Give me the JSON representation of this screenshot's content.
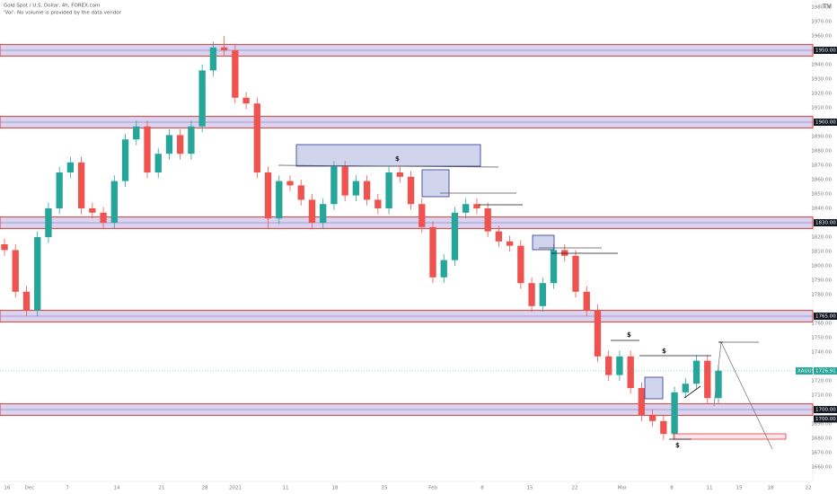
{
  "header": {
    "title": "Gold Spot / U.S. Dollar, 4h, FOREX.com",
    "note": "'Vol': No volume is provided by the data vendor"
  },
  "chart_data": {
    "type": "candlestick",
    "symbol": "XAUUSD",
    "last_price": 1726.91,
    "last_price_label": "1726.91",
    "up_color": "#26a69a",
    "down_color": "#ef5350",
    "open": [
      1815,
      1811,
      1782,
      1769,
      1820,
      1840,
      1865,
      1872,
      1840,
      1837,
      1830,
      1859,
      1888,
      1897,
      1865,
      1878,
      1891,
      1878,
      1897,
      1936,
      1952,
      1950,
      1917,
      1913,
      1865,
      1833,
      1859,
      1856,
      1846,
      1830,
      1843,
      1869,
      1849,
      1859,
      1846,
      1840,
      1865,
      1862,
      1843,
      1827,
      1792,
      1804,
      1837,
      1843,
      1840,
      1824,
      1817,
      1814,
      1788,
      1772,
      1788,
      1811,
      1807,
      1782,
      1769,
      1737,
      1724,
      1737,
      1715,
      1696,
      1692,
      1683,
      1712,
      1718,
      1734,
      1708
    ],
    "high": [
      1819,
      1815,
      1786,
      1824,
      1844,
      1869,
      1876,
      1876,
      1844,
      1841,
      1863,
      1892,
      1901,
      1901,
      1882,
      1895,
      1895,
      1901,
      1940,
      1956,
      1960,
      1954,
      1921,
      1917,
      1869,
      1863,
      1863,
      1860,
      1850,
      1847,
      1873,
      1873,
      1863,
      1863,
      1850,
      1869,
      1869,
      1866,
      1847,
      1831,
      1808,
      1841,
      1847,
      1847,
      1844,
      1828,
      1821,
      1818,
      1792,
      1792,
      1815,
      1815,
      1811,
      1786,
      1773,
      1741,
      1741,
      1741,
      1719,
      1700,
      1696,
      1716,
      1722,
      1738,
      1738,
      1731
    ],
    "low": [
      1807,
      1778,
      1765,
      1765,
      1816,
      1836,
      1861,
      1836,
      1833,
      1826,
      1826,
      1855,
      1884,
      1861,
      1861,
      1874,
      1874,
      1874,
      1893,
      1932,
      1946,
      1913,
      1909,
      1861,
      1826,
      1829,
      1852,
      1842,
      1826,
      1826,
      1839,
      1845,
      1845,
      1842,
      1836,
      1836,
      1858,
      1839,
      1823,
      1788,
      1788,
      1800,
      1833,
      1836,
      1820,
      1813,
      1810,
      1784,
      1768,
      1768,
      1784,
      1803,
      1778,
      1765,
      1733,
      1720,
      1720,
      1711,
      1692,
      1688,
      1679,
      1679,
      1708,
      1714,
      1704,
      1704
    ],
    "close": [
      1811,
      1782,
      1769,
      1820,
      1840,
      1865,
      1872,
      1840,
      1837,
      1830,
      1859,
      1888,
      1897,
      1865,
      1878,
      1891,
      1878,
      1897,
      1936,
      1952,
      1950,
      1917,
      1913,
      1865,
      1833,
      1859,
      1856,
      1846,
      1830,
      1843,
      1869,
      1849,
      1859,
      1846,
      1840,
      1865,
      1862,
      1843,
      1827,
      1792,
      1804,
      1837,
      1843,
      1840,
      1824,
      1817,
      1814,
      1788,
      1772,
      1788,
      1811,
      1807,
      1782,
      1769,
      1737,
      1724,
      1737,
      1715,
      1696,
      1692,
      1683,
      1712,
      1718,
      1734,
      1708,
      1727
    ],
    "zones": [
      {
        "label": "1950.00",
        "value": 1950,
        "top": 1954,
        "bottom": 1946
      },
      {
        "label": "1900.00",
        "value": 1900,
        "top": 1904,
        "bottom": 1896
      },
      {
        "label": "1830.00",
        "value": 1830,
        "top": 1834,
        "bottom": 1826
      },
      {
        "label": "1765.00",
        "value": 1765,
        "top": 1769,
        "bottom": 1761
      },
      {
        "label": "1700.00",
        "value": 1700,
        "top": 1704,
        "bottom": 1696
      }
    ],
    "zone_extra_label": "1700.00",
    "annotations": [
      "$",
      "$",
      "$",
      "$"
    ],
    "ylim": [
      1650,
      1985
    ],
    "yticks": [
      {
        "value": 1660,
        "label": "1660.00"
      },
      {
        "value": 1670,
        "label": "1670.00"
      },
      {
        "value": 1680,
        "label": "1680.00"
      },
      {
        "value": 1690,
        "label": "1690.00"
      },
      {
        "value": 1710,
        "label": "1710.00"
      },
      {
        "value": 1720,
        "label": "1720.00"
      },
      {
        "value": 1740,
        "label": "1740.00"
      },
      {
        "value": 1750,
        "label": "1750.00"
      },
      {
        "value": 1760,
        "label": "1760.00"
      },
      {
        "value": 1780,
        "label": "1780.00"
      },
      {
        "value": 1790,
        "label": "1790.00"
      },
      {
        "value": 1800,
        "label": "1800.00"
      },
      {
        "value": 1810,
        "label": "1810.00"
      },
      {
        "value": 1820,
        "label": "1820.00"
      },
      {
        "value": 1840,
        "label": "1840.00"
      },
      {
        "value": 1850,
        "label": "1850.00"
      },
      {
        "value": 1860,
        "label": "1860.00"
      },
      {
        "value": 1870,
        "label": "1870.00"
      },
      {
        "value": 1880,
        "label": "1880.00"
      },
      {
        "value": 1890,
        "label": "1890.00"
      },
      {
        "value": 1910,
        "label": "1910.00"
      },
      {
        "value": 1920,
        "label": "1920.00"
      },
      {
        "value": 1930,
        "label": "1930.00"
      },
      {
        "value": 1940,
        "label": "1940.00"
      },
      {
        "value": 1960,
        "label": "1960.00"
      },
      {
        "value": 1970,
        "label": "1970.00"
      },
      {
        "value": 1980,
        "label": "1980.00"
      }
    ],
    "xtick_labels": [
      "16",
      "Dec",
      "7",
      "14",
      "21",
      "28",
      "2021",
      "11",
      "18",
      "25",
      "Feb",
      "8",
      "15",
      "22",
      "Mar",
      "8",
      "11",
      "15",
      "18",
      "22"
    ]
  }
}
